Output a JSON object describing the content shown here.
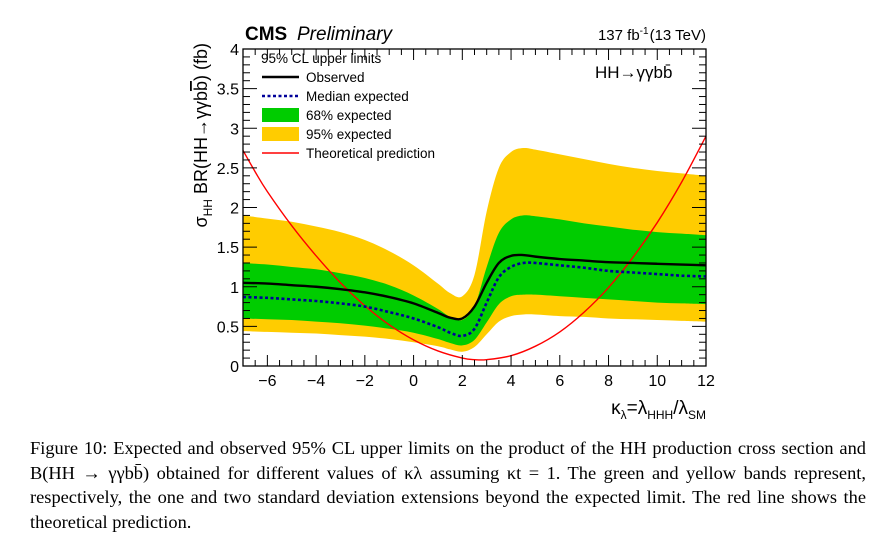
{
  "chart_data": {
    "type": "line",
    "experiment": "CMS",
    "status": "Preliminary",
    "lumi_label": "137 fb",
    "lumi_exp": "-1",
    "energy_label": "(13 TeV)",
    "process_label": "HH→γγbb̄",
    "legend_title": "95% CL upper limits",
    "legend_placement": "top-left",
    "xlabel": "κλ=λHHH/λSM",
    "ylabel": "σHH BR(HH→γγbb̄) (fb)",
    "xlim": [
      -7,
      12
    ],
    "ylim": [
      0,
      4
    ],
    "xticks": [
      -6,
      -4,
      -2,
      0,
      2,
      4,
      6,
      8,
      10,
      12
    ],
    "xtick_labels": [
      "−6",
      "−4",
      "−2",
      "0",
      "2",
      "4",
      "6",
      "8",
      "10",
      "12"
    ],
    "yticks": [
      0,
      0.5,
      1,
      1.5,
      2,
      2.5,
      3,
      3.5,
      4
    ],
    "ytick_labels": [
      "0",
      "0.5",
      "1",
      "1.5",
      "2",
      "2.5",
      "3",
      "3.5",
      "4"
    ],
    "grid": false,
    "x": [
      -7,
      -6,
      -5,
      -4,
      -3,
      -2,
      -1,
      0,
      1,
      1.5,
      2,
      2.5,
      3,
      3.5,
      4,
      4.5,
      5,
      6,
      7,
      8,
      9,
      10,
      11,
      12
    ],
    "series": [
      {
        "name": "Observed",
        "style": "solid",
        "color": "#000000",
        "values": [
          1.05,
          1.04,
          1.02,
          1.0,
          0.97,
          0.93,
          0.87,
          0.79,
          0.67,
          0.61,
          0.6,
          0.75,
          1.05,
          1.3,
          1.39,
          1.4,
          1.38,
          1.35,
          1.33,
          1.31,
          1.3,
          1.29,
          1.28,
          1.27
        ]
      },
      {
        "name": "Median expected",
        "style": "dashed",
        "color": "#000099",
        "values": [
          0.87,
          0.86,
          0.84,
          0.82,
          0.79,
          0.75,
          0.68,
          0.6,
          0.49,
          0.42,
          0.38,
          0.47,
          0.8,
          1.12,
          1.25,
          1.3,
          1.3,
          1.27,
          1.24,
          1.2,
          1.18,
          1.16,
          1.14,
          1.13
        ]
      },
      {
        "name": "68% expected",
        "type": "band",
        "color": "#00cc00",
        "lower": [
          0.6,
          0.59,
          0.58,
          0.56,
          0.54,
          0.51,
          0.47,
          0.42,
          0.34,
          0.29,
          0.26,
          0.33,
          0.55,
          0.78,
          0.88,
          0.9,
          0.9,
          0.88,
          0.86,
          0.84,
          0.82,
          0.8,
          0.79,
          0.78
        ],
        "upper": [
          1.3,
          1.28,
          1.25,
          1.22,
          1.17,
          1.11,
          1.02,
          0.89,
          0.72,
          0.62,
          0.58,
          0.75,
          1.25,
          1.68,
          1.85,
          1.9,
          1.89,
          1.85,
          1.8,
          1.76,
          1.72,
          1.69,
          1.67,
          1.65
        ]
      },
      {
        "name": "95% expected",
        "type": "band",
        "color": "#ffcc00",
        "lower": [
          0.44,
          0.43,
          0.42,
          0.41,
          0.39,
          0.37,
          0.34,
          0.3,
          0.25,
          0.21,
          0.18,
          0.24,
          0.4,
          0.56,
          0.63,
          0.65,
          0.65,
          0.63,
          0.62,
          0.6,
          0.59,
          0.58,
          0.57,
          0.56
        ],
        "upper": [
          1.9,
          1.86,
          1.82,
          1.76,
          1.69,
          1.59,
          1.45,
          1.27,
          1.04,
          0.92,
          0.88,
          1.15,
          1.95,
          2.5,
          2.7,
          2.75,
          2.73,
          2.67,
          2.61,
          2.55,
          2.5,
          2.46,
          2.43,
          2.4
        ]
      },
      {
        "name": "Theoretical prediction",
        "style": "solid",
        "color": "#ff0000",
        "x": [
          -7,
          -6.5,
          -6,
          -5,
          -4,
          -3,
          -2,
          -1,
          0,
          1,
          2,
          2.5,
          3,
          4,
          5,
          6,
          7,
          8,
          9,
          10,
          11,
          12
        ],
        "values": [
          2.72,
          2.45,
          2.2,
          1.77,
          1.39,
          1.05,
          0.76,
          0.52,
          0.33,
          0.19,
          0.1,
          0.08,
          0.08,
          0.13,
          0.25,
          0.43,
          0.68,
          0.99,
          1.37,
          1.81,
          2.32,
          2.9
        ]
      }
    ]
  },
  "caption": {
    "figure_label": "Figure 10:",
    "text": "Expected and observed 95% CL upper limits on the product of the HH production cross section and B(HH → γγbb̄) obtained for different values of κλ assuming κt = 1. The green and yellow bands represent, respectively, the one and two standard deviation extensions beyond the expected limit. The red line shows the theoretical prediction."
  }
}
